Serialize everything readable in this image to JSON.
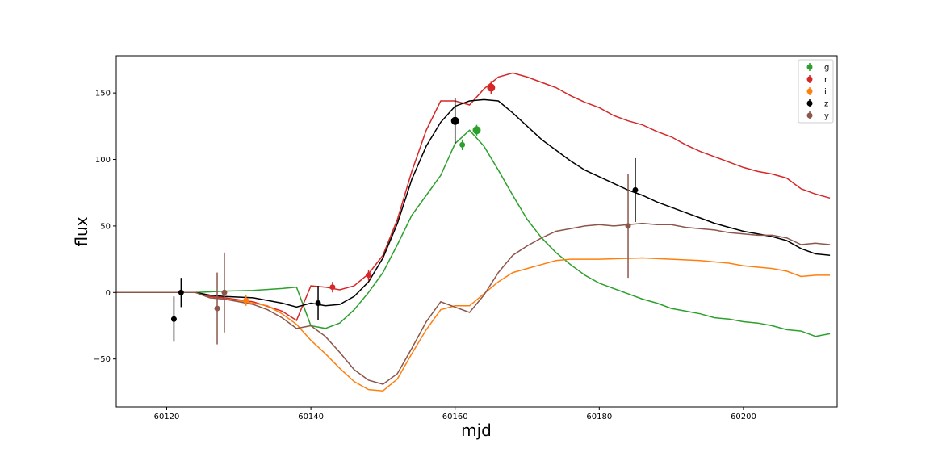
{
  "chart_data": {
    "type": "line",
    "xlabel": "mjd",
    "ylabel": "flux",
    "xlim": [
      60113,
      60213
    ],
    "ylim": [
      -86,
      178
    ],
    "xticks": [
      60120,
      60140,
      60160,
      60180,
      60200
    ],
    "yticks": [
      -50,
      0,
      50,
      100,
      150
    ],
    "grid": false,
    "legend": "top-right",
    "series": [
      {
        "name": "g",
        "color": "#2ca02c",
        "model": [
          [
            60113,
            0
          ],
          [
            60122,
            0
          ],
          [
            60124,
            0
          ],
          [
            60126,
            0.5
          ],
          [
            60128,
            1
          ],
          [
            60132,
            1.5
          ],
          [
            60136,
            3
          ],
          [
            60138,
            4
          ],
          [
            60140,
            -25
          ],
          [
            60142,
            -27
          ],
          [
            60144,
            -23
          ],
          [
            60146,
            -13
          ],
          [
            60148,
            0
          ],
          [
            60150,
            15
          ],
          [
            60152,
            36
          ],
          [
            60154,
            58
          ],
          [
            60156,
            73
          ],
          [
            60158,
            88
          ],
          [
            60160,
            112
          ],
          [
            60162,
            122
          ],
          [
            60164,
            110
          ],
          [
            60166,
            92
          ],
          [
            60168,
            73
          ],
          [
            60170,
            55
          ],
          [
            60172,
            41
          ],
          [
            60174,
            30
          ],
          [
            60176,
            21
          ],
          [
            60178,
            13
          ],
          [
            60180,
            7
          ],
          [
            60182,
            3
          ],
          [
            60184,
            -1
          ],
          [
            60186,
            -5
          ],
          [
            60188,
            -8
          ],
          [
            60190,
            -12
          ],
          [
            60192,
            -14
          ],
          [
            60194,
            -16
          ],
          [
            60196,
            -19
          ],
          [
            60198,
            -20
          ],
          [
            60200,
            -22
          ],
          [
            60202,
            -23
          ],
          [
            60204,
            -25
          ],
          [
            60206,
            -28
          ],
          [
            60208,
            -29
          ],
          [
            60210,
            -33
          ],
          [
            60212,
            -31
          ]
        ],
        "points": [
          {
            "x": 60161,
            "y": 111,
            "err": 4,
            "size": 3.5
          },
          {
            "x": 60163,
            "y": 122,
            "err": 4,
            "size": 5
          }
        ]
      },
      {
        "name": "r",
        "color": "#d62728",
        "model": [
          [
            60113,
            0
          ],
          [
            60124,
            0
          ],
          [
            60126,
            -3
          ],
          [
            60128,
            -4
          ],
          [
            60132,
            -7
          ],
          [
            60136,
            -14
          ],
          [
            60138,
            -21
          ],
          [
            60140,
            5
          ],
          [
            60142,
            4
          ],
          [
            60144,
            2
          ],
          [
            60146,
            5
          ],
          [
            60148,
            14
          ],
          [
            60150,
            28
          ],
          [
            60152,
            55
          ],
          [
            60154,
            91
          ],
          [
            60156,
            122
          ],
          [
            60158,
            144
          ],
          [
            60160,
            144
          ],
          [
            60162,
            141
          ],
          [
            60164,
            153
          ],
          [
            60166,
            162
          ],
          [
            60168,
            165
          ],
          [
            60170,
            162
          ],
          [
            60172,
            158
          ],
          [
            60174,
            154
          ],
          [
            60176,
            148
          ],
          [
            60178,
            143
          ],
          [
            60180,
            139
          ],
          [
            60182,
            133
          ],
          [
            60184,
            129
          ],
          [
            60186,
            126
          ],
          [
            60188,
            121
          ],
          [
            60190,
            117
          ],
          [
            60192,
            111
          ],
          [
            60194,
            106
          ],
          [
            60196,
            102
          ],
          [
            60198,
            98
          ],
          [
            60200,
            94
          ],
          [
            60202,
            91
          ],
          [
            60204,
            89
          ],
          [
            60206,
            86
          ],
          [
            60208,
            78
          ],
          [
            60210,
            74
          ],
          [
            60212,
            71
          ]
        ],
        "points": [
          {
            "x": 60143,
            "y": 4,
            "err": 4,
            "size": 3.5
          },
          {
            "x": 60148,
            "y": 13,
            "err": 4,
            "size": 3.5
          },
          {
            "x": 60165,
            "y": 154,
            "err": 5,
            "size": 5
          }
        ]
      },
      {
        "name": "i",
        "color": "#ff7f0e",
        "model": [
          [
            60113,
            0
          ],
          [
            60124,
            0
          ],
          [
            60126,
            -4
          ],
          [
            60128,
            -5
          ],
          [
            60130,
            -6
          ],
          [
            60134,
            -10
          ],
          [
            60136,
            -16
          ],
          [
            60138,
            -24
          ],
          [
            60140,
            -36
          ],
          [
            60142,
            -46
          ],
          [
            60144,
            -57
          ],
          [
            60146,
            -67
          ],
          [
            60148,
            -73
          ],
          [
            60150,
            -74
          ],
          [
            60152,
            -65
          ],
          [
            60154,
            -46
          ],
          [
            60156,
            -28
          ],
          [
            60158,
            -13
          ],
          [
            60160,
            -10
          ],
          [
            60162,
            -10
          ],
          [
            60164,
            -1
          ],
          [
            60166,
            8
          ],
          [
            60168,
            15
          ],
          [
            60170,
            18
          ],
          [
            60172,
            21
          ],
          [
            60174,
            24
          ],
          [
            60176,
            25
          ],
          [
            60180,
            25
          ],
          [
            60186,
            26
          ],
          [
            60190,
            25
          ],
          [
            60194,
            24
          ],
          [
            60198,
            22
          ],
          [
            60200,
            20
          ],
          [
            60204,
            18
          ],
          [
            60206,
            16
          ],
          [
            60208,
            12
          ],
          [
            60210,
            13
          ],
          [
            60212,
            13
          ]
        ],
        "points": [
          {
            "x": 60131,
            "y": -6,
            "err": 4,
            "size": 3.5
          }
        ]
      },
      {
        "name": "z",
        "color": "#000000",
        "model": [
          [
            60113,
            0
          ],
          [
            60124,
            0
          ],
          [
            60126,
            -2
          ],
          [
            60128,
            -3
          ],
          [
            60132,
            -4
          ],
          [
            60136,
            -8
          ],
          [
            60138,
            -11
          ],
          [
            60140,
            -8
          ],
          [
            60142,
            -10
          ],
          [
            60144,
            -9
          ],
          [
            60146,
            -3
          ],
          [
            60148,
            8
          ],
          [
            60150,
            26
          ],
          [
            60152,
            52
          ],
          [
            60154,
            85
          ],
          [
            60156,
            110
          ],
          [
            60158,
            128
          ],
          [
            60160,
            140
          ],
          [
            60162,
            144
          ],
          [
            60164,
            145
          ],
          [
            60166,
            144
          ],
          [
            60168,
            135
          ],
          [
            60170,
            125
          ],
          [
            60172,
            115
          ],
          [
            60174,
            107
          ],
          [
            60176,
            99
          ],
          [
            60178,
            92
          ],
          [
            60180,
            87
          ],
          [
            60182,
            82
          ],
          [
            60184,
            77
          ],
          [
            60186,
            73
          ],
          [
            60188,
            68
          ],
          [
            60190,
            64
          ],
          [
            60192,
            60
          ],
          [
            60194,
            56
          ],
          [
            60196,
            52
          ],
          [
            60198,
            49
          ],
          [
            60200,
            46
          ],
          [
            60202,
            44
          ],
          [
            60204,
            42
          ],
          [
            60206,
            39
          ],
          [
            60208,
            33
          ],
          [
            60210,
            29
          ],
          [
            60212,
            28
          ]
        ],
        "points": [
          {
            "x": 60121,
            "y": -20,
            "err": 17,
            "size": 3.5
          },
          {
            "x": 60122,
            "y": 0,
            "err": 11,
            "size": 3.5
          },
          {
            "x": 60141,
            "y": -8,
            "err": 13,
            "size": 3.5
          },
          {
            "x": 60160,
            "y": 129,
            "err": 17,
            "size": 5
          },
          {
            "x": 60185,
            "y": 77,
            "err": 24,
            "size": 3.5
          }
        ]
      },
      {
        "name": "y",
        "color": "#8c564b",
        "model": [
          [
            60113,
            0
          ],
          [
            60124,
            0
          ],
          [
            60126,
            -4
          ],
          [
            60128,
            -5
          ],
          [
            60130,
            -7
          ],
          [
            60132,
            -9
          ],
          [
            60134,
            -13
          ],
          [
            60136,
            -19
          ],
          [
            60138,
            -27
          ],
          [
            60140,
            -25
          ],
          [
            60142,
            -33
          ],
          [
            60144,
            -45
          ],
          [
            60146,
            -58
          ],
          [
            60148,
            -66
          ],
          [
            60150,
            -69
          ],
          [
            60152,
            -61
          ],
          [
            60154,
            -42
          ],
          [
            60156,
            -22
          ],
          [
            60158,
            -7
          ],
          [
            60160,
            -11
          ],
          [
            60162,
            -15
          ],
          [
            60164,
            -2
          ],
          [
            60166,
            15
          ],
          [
            60168,
            28
          ],
          [
            60170,
            35
          ],
          [
            60172,
            41
          ],
          [
            60174,
            46
          ],
          [
            60176,
            48
          ],
          [
            60178,
            50
          ],
          [
            60180,
            51
          ],
          [
            60182,
            50
          ],
          [
            60184,
            51
          ],
          [
            60186,
            52
          ],
          [
            60188,
            51
          ],
          [
            60190,
            51
          ],
          [
            60192,
            49
          ],
          [
            60194,
            48
          ],
          [
            60196,
            47
          ],
          [
            60198,
            45
          ],
          [
            60200,
            44
          ],
          [
            60202,
            43
          ],
          [
            60204,
            43
          ],
          [
            60206,
            41
          ],
          [
            60208,
            36
          ],
          [
            60210,
            37
          ],
          [
            60212,
            36
          ]
        ],
        "points": [
          {
            "x": 60127,
            "y": -12,
            "err": 27,
            "size": 3.5
          },
          {
            "x": 60128,
            "y": 0,
            "err": 30,
            "size": 3.5
          },
          {
            "x": 60184,
            "y": 50,
            "err": 39,
            "size": 3.5
          }
        ]
      }
    ]
  }
}
